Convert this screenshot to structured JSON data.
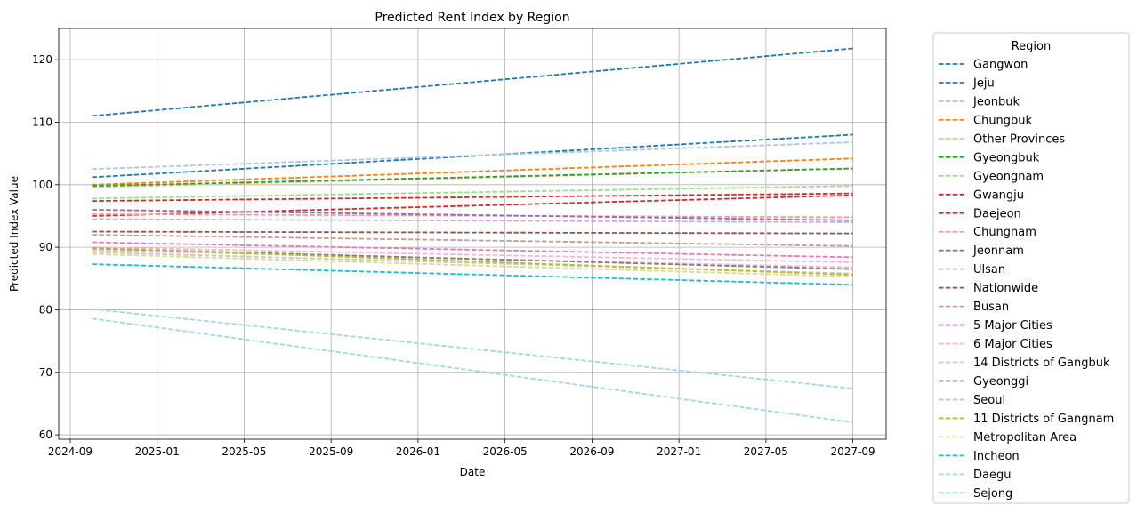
{
  "chart_data": {
    "type": "line",
    "title": "Predicted Rent Index by Region",
    "xlabel": "Date",
    "ylabel": "Predicted Index Value",
    "x_start": "2024-10",
    "x_end": "2027-09",
    "x_ticks": [
      "2024-09",
      "2025-01",
      "2025-05",
      "2025-09",
      "2026-01",
      "2026-05",
      "2026-09",
      "2027-01",
      "2027-05",
      "2027-09"
    ],
    "y_ticks": [
      60,
      70,
      80,
      90,
      100,
      110,
      120
    ],
    "ylim": [
      59.3,
      125.0
    ],
    "grid": true,
    "line_style": "dashed",
    "legend": {
      "title": "Region",
      "placement": "outside-right"
    },
    "series": [
      {
        "name": "Gangwon",
        "color": "#1f77b4",
        "start": 111.0,
        "end": 121.8
      },
      {
        "name": "Jeju",
        "color": "#1f77b4",
        "start": 101.2,
        "end": 108.0
      },
      {
        "name": "Jeonbuk",
        "color": "#aec7e8",
        "start": 102.5,
        "end": 106.8
      },
      {
        "name": "Chungbuk",
        "color": "#ff7f0e",
        "start": 100.0,
        "end": 104.2
      },
      {
        "name": "Other Provinces",
        "color": "#ffbb78",
        "start": 99.6,
        "end": 102.6
      },
      {
        "name": "Gyeongbuk",
        "color": "#2ca02c",
        "start": 99.8,
        "end": 102.6
      },
      {
        "name": "Gyeongnam",
        "color": "#98df8a",
        "start": 97.8,
        "end": 99.8
      },
      {
        "name": "Gwangju",
        "color": "#d62728",
        "start": 97.4,
        "end": 98.6
      },
      {
        "name": "Daejeon",
        "color": "#d62728",
        "start": 95.0,
        "end": 98.3
      },
      {
        "name": "Chungnam",
        "color": "#ff9896",
        "start": 95.3,
        "end": 94.8
      },
      {
        "name": "Jeonnam",
        "color": "#9467bd",
        "start": 96.0,
        "end": 94.3
      },
      {
        "name": "Ulsan",
        "color": "#c5b0d5",
        "start": 94.5,
        "end": 94.0
      },
      {
        "name": "Nationwide",
        "color": "#8c564b",
        "start": 92.5,
        "end": 92.2
      },
      {
        "name": "Busan",
        "color": "#c49c94",
        "start": 92.0,
        "end": 90.2
      },
      {
        "name": "5 Major Cities",
        "color": "#e377c2",
        "start": 90.8,
        "end": 88.4
      },
      {
        "name": "6 Major Cities",
        "color": "#f7b6d2",
        "start": 90.0,
        "end": 87.6
      },
      {
        "name": "14 Districts of Gangbuk",
        "color": "#f7b6d2",
        "start": 89.5,
        "end": 86.8
      },
      {
        "name": "Gyeonggi",
        "color": "#7f7f7f",
        "start": 89.8,
        "end": 86.5
      },
      {
        "name": "Seoul",
        "color": "#c7c7c7",
        "start": 89.2,
        "end": 85.8
      },
      {
        "name": "11 Districts of Gangnam",
        "color": "#bcbd22",
        "start": 89.9,
        "end": 85.6
      },
      {
        "name": "Metropolitan Area",
        "color": "#dbdb8d",
        "start": 88.9,
        "end": 85.3
      },
      {
        "name": "Incheon",
        "color": "#17becf",
        "start": 87.3,
        "end": 84.0
      },
      {
        "name": "Daegu",
        "color": "#9edae5",
        "start": 80.1,
        "end": 67.4
      },
      {
        "name": "Sejong",
        "color": "#9edae5",
        "start": 78.6,
        "end": 62.0
      }
    ]
  }
}
